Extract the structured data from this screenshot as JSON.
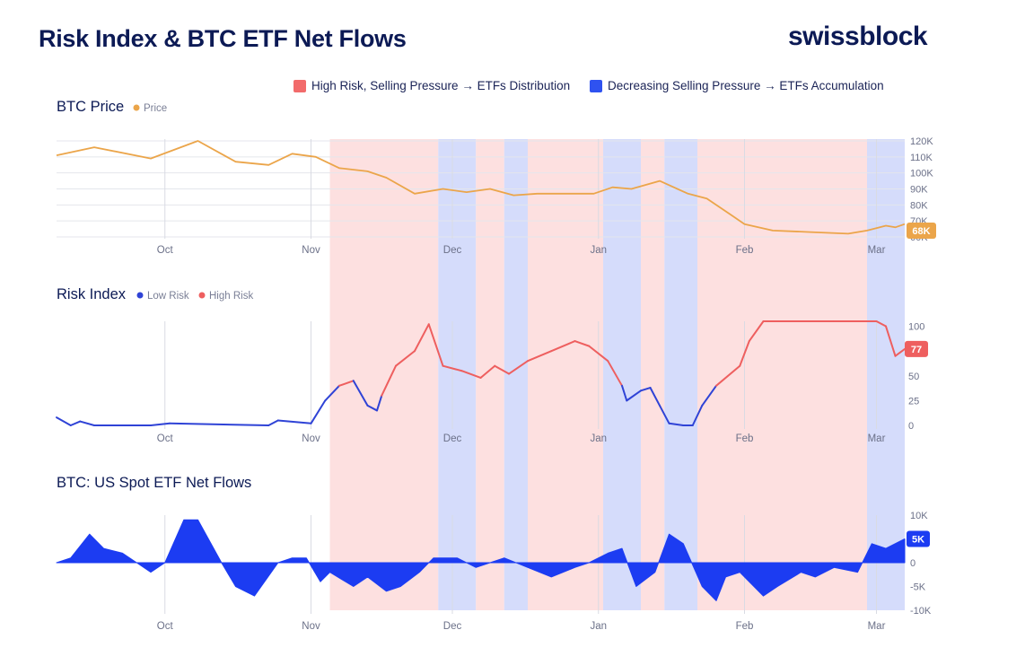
{
  "header": {
    "title": "Risk Index & BTC ETF Net Flows",
    "brand": "swissblock"
  },
  "legend": [
    {
      "label": "High Risk, Selling Pressure → ETFs Distribution",
      "color": "#f26b6b"
    },
    {
      "label": "Decreasing Selling Pressure → ETFs Accumulation",
      "color": "#2f52f0"
    }
  ],
  "colors": {
    "price": "#eba54a",
    "low_risk": "#2f43d6",
    "high_risk": "#ee5f5f",
    "flows": "#1c3cf2",
    "high_band": "#fde0e0",
    "low_band": "#d5dcfb"
  },
  "chart_data": [
    {
      "type": "line",
      "title": "BTC Price",
      "legend": [
        {
          "label": "Price",
          "color": "#eba54a"
        }
      ],
      "x_ticks": [
        "Oct",
        "Nov",
        "Dec",
        "Jan",
        "Feb",
        "Mar"
      ],
      "x_tick_days": [
        23,
        54,
        84,
        115,
        146,
        174
      ],
      "x_range_days": [
        0,
        180
      ],
      "y_ticks": [
        "120K",
        "110K",
        "100K",
        "90K",
        "80K",
        "70K",
        "60K"
      ],
      "y_tick_values": [
        120,
        110,
        100,
        90,
        80,
        70,
        60
      ],
      "ylim": [
        60,
        120
      ],
      "current_label": "68K",
      "series": [
        {
          "name": "Price",
          "unit": "K USD",
          "x_days": [
            0,
            8,
            20,
            30,
            38,
            45,
            50,
            55,
            60,
            66,
            70,
            76,
            82,
            87,
            92,
            97,
            102,
            108,
            114,
            118,
            122,
            128,
            134,
            138,
            143,
            146,
            152,
            160,
            168,
            172,
            176,
            178,
            180
          ],
          "values": [
            111,
            116,
            109,
            120,
            107,
            105,
            112,
            110,
            103,
            101,
            97,
            87,
            90,
            88,
            90,
            86,
            87,
            87,
            87,
            91,
            90,
            95,
            87,
            84,
            74,
            68,
            64,
            63,
            62,
            64,
            67,
            66,
            68
          ]
        }
      ],
      "bands_days": [
        {
          "type": "high",
          "from": 58,
          "to": 81
        },
        {
          "type": "low",
          "from": 81,
          "to": 89
        },
        {
          "type": "high",
          "from": 89,
          "to": 95
        },
        {
          "type": "low",
          "from": 95,
          "to": 100
        },
        {
          "type": "high",
          "from": 100,
          "to": 116
        },
        {
          "type": "low",
          "from": 116,
          "to": 124
        },
        {
          "type": "high",
          "from": 124,
          "to": 129
        },
        {
          "type": "low",
          "from": 129,
          "to": 136
        },
        {
          "type": "high",
          "from": 136,
          "to": 172
        },
        {
          "type": "low",
          "from": 172,
          "to": 180
        }
      ]
    },
    {
      "type": "line",
      "title": "Risk Index",
      "legend": [
        {
          "label": "Low Risk",
          "color": "#2f43d6"
        },
        {
          "label": "High Risk",
          "color": "#ee5f5f"
        }
      ],
      "x_ticks": [
        "Oct",
        "Nov",
        "Dec",
        "Jan",
        "Feb",
        "Mar"
      ],
      "y_ticks": [
        "100",
        "77",
        "50",
        "25",
        "0"
      ],
      "y_tick_values": [
        100,
        77,
        50,
        25,
        0
      ],
      "ylim": [
        0,
        105
      ],
      "current_label": "77",
      "threshold": 40,
      "series": [
        {
          "name": "Risk Index",
          "x_days": [
            0,
            3,
            5,
            8,
            20,
            24,
            45,
            47,
            54,
            57,
            60,
            63,
            66,
            68,
            69,
            72,
            76,
            79,
            82,
            86,
            90,
            93,
            96,
            100,
            105,
            110,
            113,
            117,
            120,
            121,
            124,
            126,
            128,
            130,
            133,
            135,
            137,
            140,
            145,
            147,
            150,
            158,
            165,
            172,
            174,
            176,
            178,
            180
          ],
          "values": [
            8,
            0,
            4,
            0,
            0,
            2,
            0,
            5,
            2,
            25,
            40,
            45,
            20,
            15,
            30,
            60,
            75,
            102,
            60,
            55,
            48,
            60,
            52,
            65,
            75,
            85,
            80,
            65,
            40,
            25,
            35,
            38,
            20,
            2,
            0,
            0,
            20,
            40,
            60,
            85,
            105,
            105,
            105,
            105,
            105,
            100,
            70,
            77
          ]
        }
      ]
    },
    {
      "type": "area",
      "title": "BTC: US Spot ETF Net Flows",
      "x_ticks": [
        "Oct",
        "Nov",
        "Dec",
        "Jan",
        "Feb",
        "Mar"
      ],
      "y_ticks": [
        "10K",
        "5K",
        "0",
        "-5K",
        "-10K"
      ],
      "y_tick_values": [
        10,
        5,
        0,
        -5,
        -10
      ],
      "ylim": [
        -10,
        10
      ],
      "current_label": "5K",
      "series": [
        {
          "name": "Net Flows",
          "unit": "K",
          "x_days": [
            0,
            3,
            7,
            10,
            14,
            17,
            20,
            23,
            27,
            30,
            35,
            38,
            42,
            47,
            50,
            53,
            56,
            58,
            63,
            66,
            70,
            73,
            77,
            80,
            85,
            89,
            92,
            95,
            100,
            105,
            110,
            113,
            117,
            120,
            123,
            127,
            130,
            133,
            137,
            140,
            142,
            145,
            150,
            153,
            158,
            161,
            165,
            170,
            173,
            176,
            180
          ],
          "values": [
            0,
            1,
            6,
            3,
            2,
            0,
            -2,
            0,
            9,
            9,
            0,
            -5,
            -7,
            0,
            1,
            1,
            -4,
            -2,
            -5,
            -3,
            -6,
            -5,
            -2,
            1,
            1,
            -1,
            0,
            1,
            -1,
            -3,
            -1,
            0,
            2,
            3,
            -5,
            -2,
            6,
            4,
            -5,
            -8,
            -3,
            -2,
            -7,
            -5,
            -2,
            -3,
            -1,
            -2,
            4,
            3,
            5
          ]
        }
      ]
    }
  ]
}
